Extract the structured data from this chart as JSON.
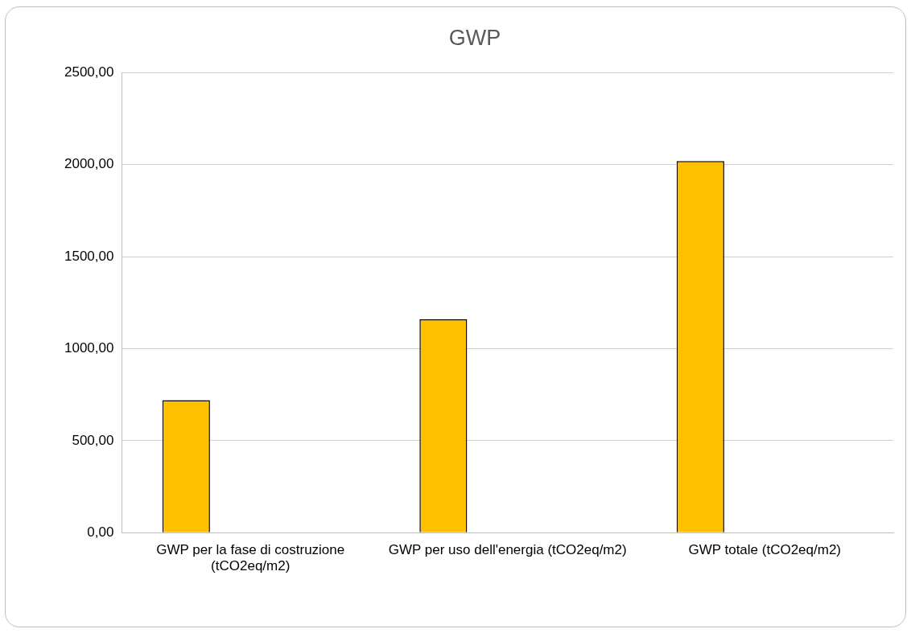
{
  "chart_data": {
    "type": "bar",
    "title": "GWP",
    "categories": [
      "GWP per la fase di costruzione (tCO2eq/m2)",
      "GWP per uso dell'energia (tCO2eq/m2)",
      "GWP totale (tCO2eq/m2)"
    ],
    "values": [
      720,
      1160,
      2020
    ],
    "color": "#ffc000",
    "ylim": [
      0,
      2500
    ],
    "yticks": [
      {
        "value": 0,
        "label": "0,00"
      },
      {
        "value": 500,
        "label": "500,00"
      },
      {
        "value": 1000,
        "label": "1000,00"
      },
      {
        "value": 1500,
        "label": "1500,00"
      },
      {
        "value": 2000,
        "label": "2000,00"
      },
      {
        "value": 2500,
        "label": "2500,00"
      }
    ],
    "grid": "y",
    "legend": false
  }
}
